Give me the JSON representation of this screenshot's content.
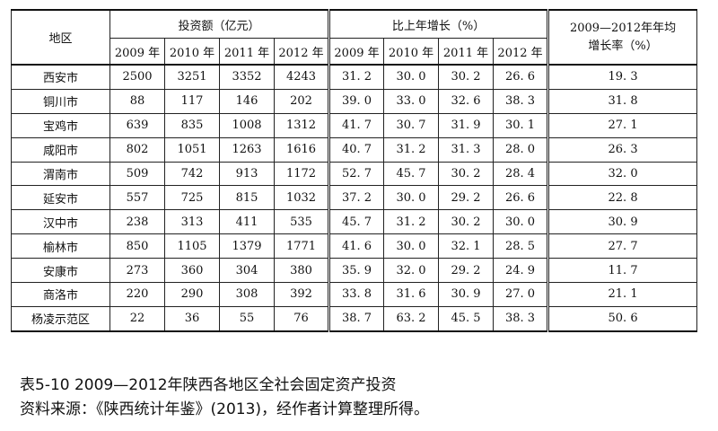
{
  "table": {
    "header": {
      "region": "地区",
      "investment": "投资额（亿元）",
      "growth": "比上年增长（%）",
      "avg_growth": "2009—2012年年均\n增长率（%）",
      "years": [
        "2009 年",
        "2010 年",
        "2011 年",
        "2012 年"
      ]
    },
    "rows": [
      {
        "region": "西安市",
        "investment": [
          "2500",
          "3251",
          "3352",
          "4243"
        ],
        "growth": [
          "31. 2",
          "30. 0",
          "30. 2",
          "26. 6"
        ],
        "avg": "19. 3"
      },
      {
        "region": "铜川市",
        "investment": [
          "88",
          "117",
          "146",
          "202"
        ],
        "growth": [
          "39. 0",
          "33. 0",
          "32. 6",
          "38. 3"
        ],
        "avg": "31. 8"
      },
      {
        "region": "宝鸡市",
        "investment": [
          "639",
          "835",
          "1008",
          "1312"
        ],
        "growth": [
          "41. 7",
          "30. 7",
          "31. 9",
          "30. 1"
        ],
        "avg": "27. 1"
      },
      {
        "region": "咸阳市",
        "investment": [
          "802",
          "1051",
          "1263",
          "1616"
        ],
        "growth": [
          "40. 7",
          "31. 2",
          "31. 3",
          "28. 0"
        ],
        "avg": "26. 3"
      },
      {
        "region": "渭南市",
        "investment": [
          "509",
          "742",
          "913",
          "1172"
        ],
        "growth": [
          "52. 7",
          "45. 7",
          "30. 2",
          "28. 4"
        ],
        "avg": "32. 0"
      },
      {
        "region": "延安市",
        "investment": [
          "557",
          "725",
          "815",
          "1032"
        ],
        "growth": [
          "37. 2",
          "30. 0",
          "29. 2",
          "26. 6"
        ],
        "avg": "22. 8"
      },
      {
        "region": "汉中市",
        "investment": [
          "238",
          "313",
          "411",
          "535"
        ],
        "growth": [
          "45. 7",
          "31. 2",
          "30. 2",
          "30. 0"
        ],
        "avg": "30. 9"
      },
      {
        "region": "榆林市",
        "investment": [
          "850",
          "1105",
          "1379",
          "1771"
        ],
        "growth": [
          "41. 6",
          "30. 0",
          "32. 1",
          "28. 5"
        ],
        "avg": "27. 7"
      },
      {
        "region": "安康市",
        "investment": [
          "273",
          "360",
          "304",
          "380"
        ],
        "growth": [
          "35. 9",
          "32. 0",
          "29. 2",
          "24. 9"
        ],
        "avg": "11. 7"
      },
      {
        "region": "商洛市",
        "investment": [
          "220",
          "290",
          "308",
          "392"
        ],
        "growth": [
          "33. 8",
          "31. 6",
          "30. 9",
          "27. 0"
        ],
        "avg": "21. 1"
      },
      {
        "region": "杨凌示范区",
        "investment": [
          "22",
          "36",
          "55",
          "76"
        ],
        "growth": [
          "38. 7",
          "63. 2",
          "45. 5",
          "38. 3"
        ],
        "avg": "50. 6"
      }
    ]
  },
  "caption": {
    "title": "表5-10  2009—2012年陕西各地区全社会固定资产投资",
    "source": "资料来源：《陕西统计年鉴》(2013)，经作者计算整理所得。"
  }
}
